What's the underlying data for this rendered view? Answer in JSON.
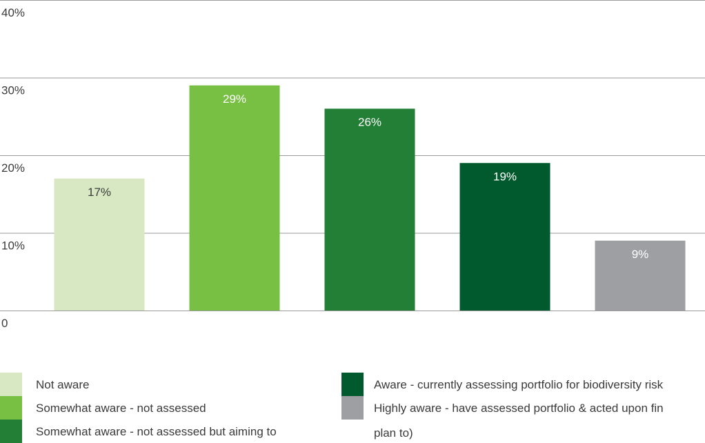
{
  "chart_data": {
    "type": "bar",
    "categories": [
      "Not aware",
      "Somewhat aware - not assessed",
      "Somewhat aware - not assessed but aiming to",
      "Aware - currently assessing portfolio for biodiversity risk",
      "Highly aware - have assessed portfolio & acted upon fin"
    ],
    "values": [
      17,
      29,
      26,
      19,
      9
    ],
    "value_labels": [
      "17%",
      "29%",
      "26%",
      "19%",
      "9%"
    ],
    "colors": [
      "#d8e8c2",
      "#78c043",
      "#237f35",
      "#005a2d",
      "#9d9fa2"
    ],
    "label_colors": [
      "#3a3a3a",
      "#ffffff",
      "#ffffff",
      "#ffffff",
      "#ffffff"
    ],
    "ylim": [
      0,
      40
    ],
    "yticks": [
      0,
      10,
      20,
      30,
      40
    ],
    "ytick_labels": [
      "0",
      "10%",
      "20%",
      "30%",
      "40%"
    ],
    "grid": true,
    "legend_position": "bottom"
  },
  "legend": {
    "left": [
      {
        "label": "Not aware",
        "color": "#d8e8c2"
      },
      {
        "label": "Somewhat aware - not assessed",
        "color": "#78c043"
      },
      {
        "label": "Somewhat aware - not assessed but aiming to",
        "color": "#237f35"
      }
    ],
    "right": [
      {
        "label": "Aware - currently assessing portfolio for biodiversity risk",
        "color": "#005a2d"
      },
      {
        "label": "Highly aware - have assessed portfolio & acted upon fin",
        "color": "#9d9fa2"
      }
    ],
    "right_continuation": "plan to)"
  }
}
